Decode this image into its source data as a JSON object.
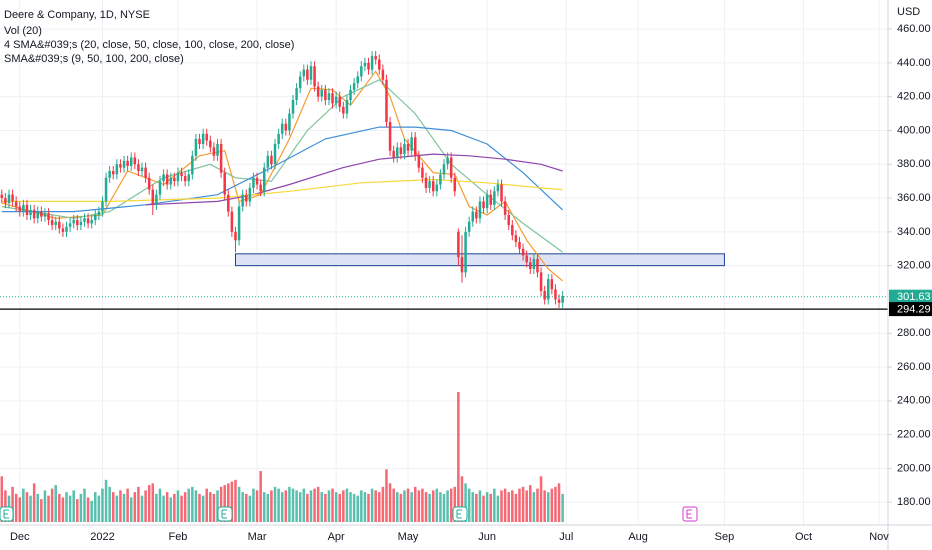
{
  "chart_data": {
    "type": "candlestick",
    "title": "Deere & Company, 1D, NYSE",
    "indicators": [
      "Vol (20)",
      "4 SMA&#039;s (20, close, 50, close, 100, close, 200, close)",
      "SMA&#039;s (9, 50, 100, 200, close)"
    ],
    "y_axis_label": "USD",
    "up_color": "#22ab94",
    "down_color": "#f23645",
    "ylim": [
      168.3,
      477.2
    ],
    "yticks": [
      {
        "value": 460,
        "label": "460.00"
      },
      {
        "value": 440,
        "label": "440.00"
      },
      {
        "value": 420,
        "label": "420.00"
      },
      {
        "value": 400,
        "label": "400.00"
      },
      {
        "value": 380,
        "label": "380.00"
      },
      {
        "value": 360,
        "label": "360.00"
      },
      {
        "value": 340,
        "label": "340.00"
      },
      {
        "value": 320,
        "label": "320.00"
      },
      {
        "value": 280,
        "label": "280.00"
      },
      {
        "value": 260,
        "label": "260.00"
      },
      {
        "value": 240,
        "label": "240.00"
      },
      {
        "value": 220,
        "label": "220.00"
      },
      {
        "value": 200,
        "label": "200.00"
      },
      {
        "value": 180,
        "label": "180.00"
      }
    ],
    "xlim": [
      -0.5,
      246.5
    ],
    "xticks": [
      {
        "value": 5,
        "label": "Dec"
      },
      {
        "value": 28,
        "label": "2022"
      },
      {
        "value": 49,
        "label": "Feb"
      },
      {
        "value": 71,
        "label": "Mar"
      },
      {
        "value": 93,
        "label": "Apr"
      },
      {
        "value": 113,
        "label": "May"
      },
      {
        "value": 135,
        "label": "Jun"
      },
      {
        "value": 157,
        "label": "Jul"
      },
      {
        "value": 177,
        "label": "Aug"
      },
      {
        "value": 201,
        "label": "Sep"
      },
      {
        "value": 223,
        "label": "Oct"
      },
      {
        "value": 244,
        "label": "Nov"
      }
    ],
    "grid": true,
    "ohlc": [
      [
        362,
        365,
        357,
        360
      ],
      [
        360,
        363,
        354,
        357
      ],
      [
        357,
        365,
        354,
        362
      ],
      [
        362,
        365,
        355,
        358
      ],
      [
        358,
        361,
        352,
        355
      ],
      [
        355,
        358,
        349,
        352
      ],
      [
        352,
        359,
        349,
        356
      ],
      [
        356,
        359,
        347,
        350
      ],
      [
        350,
        356,
        347,
        353
      ],
      [
        353,
        356,
        345,
        348
      ],
      [
        348,
        355,
        345,
        352
      ],
      [
        352,
        355,
        346,
        349
      ],
      [
        349,
        354,
        346,
        351
      ],
      [
        351,
        354,
        344,
        347
      ],
      [
        347,
        350,
        341,
        344
      ],
      [
        344,
        349,
        341,
        346
      ],
      [
        346,
        349,
        339,
        342
      ],
      [
        342,
        345,
        337,
        340
      ],
      [
        340,
        346,
        337,
        343
      ],
      [
        343,
        348,
        340,
        345
      ],
      [
        345,
        350,
        342,
        347
      ],
      [
        347,
        350,
        341,
        344
      ],
      [
        344,
        349,
        341,
        346
      ],
      [
        346,
        351,
        343,
        348
      ],
      [
        348,
        351,
        342,
        345
      ],
      [
        345,
        350,
        342,
        347
      ],
      [
        347,
        353,
        344,
        350
      ],
      [
        350,
        355,
        347,
        352
      ],
      [
        352,
        361,
        349,
        358
      ],
      [
        358,
        375,
        355,
        372
      ],
      [
        372,
        379,
        369,
        376
      ],
      [
        376,
        379,
        371,
        374
      ],
      [
        374,
        383,
        371,
        380
      ],
      [
        380,
        383,
        375,
        378
      ],
      [
        378,
        385,
        375,
        382
      ],
      [
        382,
        385,
        376,
        379
      ],
      [
        379,
        387,
        376,
        384
      ],
      [
        384,
        387,
        377,
        380
      ],
      [
        380,
        383,
        373,
        376
      ],
      [
        376,
        381,
        373,
        378
      ],
      [
        378,
        381,
        369,
        372
      ],
      [
        372,
        375,
        362,
        365
      ],
      [
        365,
        368,
        350,
        356
      ],
      [
        356,
        365,
        353,
        362
      ],
      [
        362,
        373,
        359,
        370
      ],
      [
        370,
        377,
        367,
        374
      ],
      [
        374,
        377,
        365,
        368
      ],
      [
        368,
        375,
        365,
        372
      ],
      [
        372,
        375,
        367,
        370
      ],
      [
        370,
        378,
        367,
        375
      ],
      [
        375,
        378,
        370,
        373
      ],
      [
        373,
        376,
        367,
        370
      ],
      [
        370,
        377,
        367,
        374
      ],
      [
        374,
        388,
        371,
        385
      ],
      [
        385,
        398,
        382,
        395
      ],
      [
        395,
        398,
        389,
        392
      ],
      [
        392,
        401,
        389,
        398
      ],
      [
        398,
        401,
        391,
        394
      ],
      [
        394,
        397,
        387,
        390
      ],
      [
        390,
        393,
        382,
        385
      ],
      [
        385,
        395,
        382,
        392
      ],
      [
        392,
        395,
        372,
        375
      ],
      [
        375,
        378,
        359,
        362
      ],
      [
        362,
        365,
        349,
        352
      ],
      [
        352,
        355,
        337,
        340
      ],
      [
        340,
        343,
        328,
        335
      ],
      [
        335,
        358,
        332,
        355
      ],
      [
        355,
        365,
        352,
        362
      ],
      [
        362,
        365,
        355,
        358
      ],
      [
        358,
        369,
        355,
        366
      ],
      [
        366,
        375,
        363,
        372
      ],
      [
        372,
        375,
        365,
        368
      ],
      [
        368,
        371,
        361,
        364
      ],
      [
        364,
        381,
        361,
        378
      ],
      [
        378,
        388,
        375,
        385
      ],
      [
        385,
        388,
        377,
        380
      ],
      [
        380,
        395,
        377,
        392
      ],
      [
        392,
        401,
        389,
        398
      ],
      [
        398,
        407,
        395,
        404
      ],
      [
        404,
        407,
        397,
        400
      ],
      [
        400,
        413,
        397,
        410
      ],
      [
        410,
        421,
        407,
        418
      ],
      [
        418,
        428,
        415,
        425
      ],
      [
        425,
        435,
        422,
        432
      ],
      [
        432,
        439,
        429,
        436
      ],
      [
        436,
        439,
        427,
        430
      ],
      [
        430,
        441,
        427,
        438
      ],
      [
        438,
        441,
        423,
        426
      ],
      [
        426,
        429,
        417,
        420
      ],
      [
        420,
        427,
        417,
        424
      ],
      [
        424,
        427,
        415,
        418
      ],
      [
        418,
        425,
        415,
        422
      ],
      [
        422,
        425,
        413,
        416
      ],
      [
        416,
        423,
        413,
        420
      ],
      [
        420,
        423,
        411,
        414
      ],
      [
        414,
        417,
        407,
        410
      ],
      [
        410,
        421,
        407,
        418
      ],
      [
        418,
        427,
        415,
        424
      ],
      [
        424,
        431,
        421,
        428
      ],
      [
        428,
        435,
        425,
        432
      ],
      [
        432,
        441,
        429,
        438
      ],
      [
        438,
        443,
        435,
        440
      ],
      [
        440,
        443,
        433,
        436
      ],
      [
        436,
        447,
        433,
        444
      ],
      [
        444,
        447,
        439,
        442
      ],
      [
        442,
        445,
        433,
        436
      ],
      [
        436,
        439,
        427,
        430
      ],
      [
        430,
        433,
        402,
        405
      ],
      [
        405,
        408,
        385,
        388
      ],
      [
        388,
        391,
        381,
        384
      ],
      [
        384,
        393,
        381,
        390
      ],
      [
        390,
        393,
        383,
        386
      ],
      [
        386,
        395,
        383,
        392
      ],
      [
        392,
        395,
        385,
        388
      ],
      [
        388,
        399,
        385,
        396
      ],
      [
        396,
        399,
        382,
        385
      ],
      [
        385,
        388,
        375,
        378
      ],
      [
        378,
        381,
        369,
        372
      ],
      [
        372,
        375,
        363,
        366
      ],
      [
        366,
        373,
        363,
        370
      ],
      [
        370,
        373,
        361,
        364
      ],
      [
        364,
        371,
        361,
        368
      ],
      [
        368,
        377,
        365,
        374
      ],
      [
        374,
        383,
        371,
        380
      ],
      [
        380,
        387,
        377,
        384
      ],
      [
        384,
        387,
        369,
        372
      ],
      [
        372,
        375,
        361,
        364
      ],
      [
        340,
        342,
        320,
        325
      ],
      [
        325,
        338,
        310,
        316
      ],
      [
        316,
        343,
        313,
        340
      ],
      [
        340,
        349,
        337,
        346
      ],
      [
        346,
        355,
        343,
        352
      ],
      [
        352,
        355,
        345,
        348
      ],
      [
        348,
        361,
        345,
        358
      ],
      [
        358,
        361,
        351,
        354
      ],
      [
        354,
        365,
        351,
        362
      ],
      [
        362,
        365,
        353,
        356
      ],
      [
        356,
        367,
        353,
        364
      ],
      [
        364,
        371,
        361,
        368
      ],
      [
        368,
        371,
        355,
        358
      ],
      [
        358,
        361,
        347,
        350
      ],
      [
        350,
        353,
        341,
        344
      ],
      [
        344,
        347,
        335,
        338
      ],
      [
        338,
        341,
        331,
        334
      ],
      [
        334,
        337,
        327,
        330
      ],
      [
        330,
        333,
        323,
        326
      ],
      [
        326,
        329,
        319,
        322
      ],
      [
        322,
        325,
        315,
        318
      ],
      [
        318,
        327,
        315,
        324
      ],
      [
        324,
        327,
        313,
        316
      ],
      [
        316,
        319,
        302,
        305
      ],
      [
        305,
        308,
        297,
        300
      ],
      [
        300,
        315,
        297,
        312
      ],
      [
        312,
        315,
        303,
        306
      ],
      [
        306,
        309,
        297,
        300
      ],
      [
        300,
        303,
        295,
        298
      ],
      [
        298,
        305,
        295,
        302
      ]
    ],
    "volume": [
      2.6,
      1.8,
      1.5,
      2.0,
      1.6,
      1.4,
      1.9,
      1.7,
      1.5,
      2.2,
      1.6,
      1.3,
      1.8,
      1.5,
      1.9,
      2.1,
      1.6,
      1.4,
      1.7,
      1.5,
      1.8,
      1.3,
      1.6,
      1.9,
      1.4,
      1.2,
      1.7,
      1.5,
      1.9,
      2.4,
      2.0,
      1.7,
      1.5,
      1.8,
      1.6,
      1.9,
      1.4,
      1.7,
      2.0,
      1.5,
      1.8,
      2.1,
      2.2,
      1.6,
      1.9,
      1.5,
      1.7,
      1.4,
      1.6,
      1.8,
      1.5,
      1.7,
      1.9,
      2.0,
      1.8,
      1.6,
      1.5,
      1.9,
      1.7,
      1.6,
      1.8,
      2.0,
      2.1,
      2.2,
      2.3,
      2.4,
      2.0,
      1.7,
      1.6,
      1.5,
      1.9,
      1.8,
      2.9,
      1.7,
      1.6,
      1.8,
      2.0,
      1.9,
      1.7,
      1.8,
      2.0,
      1.9,
      1.8,
      1.7,
      1.9,
      1.6,
      1.8,
      1.9,
      2.0,
      1.7,
      1.6,
      1.8,
      1.9,
      1.7,
      1.6,
      1.8,
      1.9,
      1.7,
      1.6,
      1.5,
      1.8,
      1.7,
      1.6,
      1.9,
      1.8,
      1.7,
      2.0,
      3.0,
      2.2,
      1.9,
      1.7,
      1.6,
      1.8,
      1.9,
      1.7,
      2.0,
      1.8,
      1.9,
      1.7,
      1.6,
      1.8,
      1.9,
      1.7,
      1.6,
      1.8,
      1.9,
      2.0,
      7.4,
      2.6,
      2.2,
      1.9,
      1.7,
      1.6,
      1.8,
      1.5,
      1.7,
      1.6,
      1.9,
      1.5,
      1.8,
      1.9,
      1.7,
      1.8,
      1.6,
      1.9,
      2.0,
      1.8,
      2.1,
      1.7,
      1.9,
      2.6,
      1.8,
      1.7,
      1.9,
      2.0,
      2.2,
      1.6
    ],
    "series": [
      {
        "color": "#f59b2d",
        "x": [
          0,
          15,
          28,
          35,
          45,
          55,
          62,
          66,
          72,
          80,
          86,
          92,
          97,
          104,
          108,
          112,
          120,
          126,
          130,
          135,
          140,
          146,
          152,
          156
        ],
        "values": [
          357,
          348,
          350,
          376,
          368,
          385,
          388,
          358,
          362,
          395,
          425,
          424,
          415,
          435,
          420,
          395,
          375,
          374,
          355,
          350,
          358,
          335,
          318,
          311
        ]
      },
      {
        "color": "#7fc49a",
        "x": [
          0,
          20,
          30,
          45,
          58,
          65,
          75,
          85,
          95,
          105,
          115,
          125,
          135,
          145,
          156
        ],
        "values": [
          355,
          348,
          352,
          372,
          380,
          372,
          370,
          400,
          420,
          430,
          410,
          380,
          362,
          345,
          328
        ]
      },
      {
        "color": "#3d8fd9",
        "x": [
          0,
          20,
          40,
          60,
          75,
          90,
          105,
          115,
          125,
          135,
          145,
          156
        ],
        "values": [
          352,
          352,
          356,
          362,
          378,
          395,
          402,
          402,
          400,
          392,
          375,
          353
        ]
      },
      {
        "color": "#8e44ad",
        "x": [
          40,
          60,
          70,
          80,
          95,
          105,
          120,
          130,
          140,
          150,
          156
        ],
        "values": [
          356,
          358,
          362,
          368,
          378,
          383,
          386,
          385,
          383,
          380,
          376
        ]
      },
      {
        "color": "#f7d83c",
        "x": [
          0,
          30,
          60,
          80,
          100,
          120,
          135,
          150,
          156
        ],
        "values": [
          358,
          358,
          360,
          364,
          369,
          371,
          369,
          366,
          365
        ]
      }
    ],
    "zone": {
      "x": [
        65,
        201
      ],
      "y": [
        320,
        327
      ]
    },
    "price_labels": [
      {
        "value": 301.63,
        "color": "#22ab94"
      },
      {
        "value": 294.29,
        "color": "#000000"
      }
    ]
  }
}
